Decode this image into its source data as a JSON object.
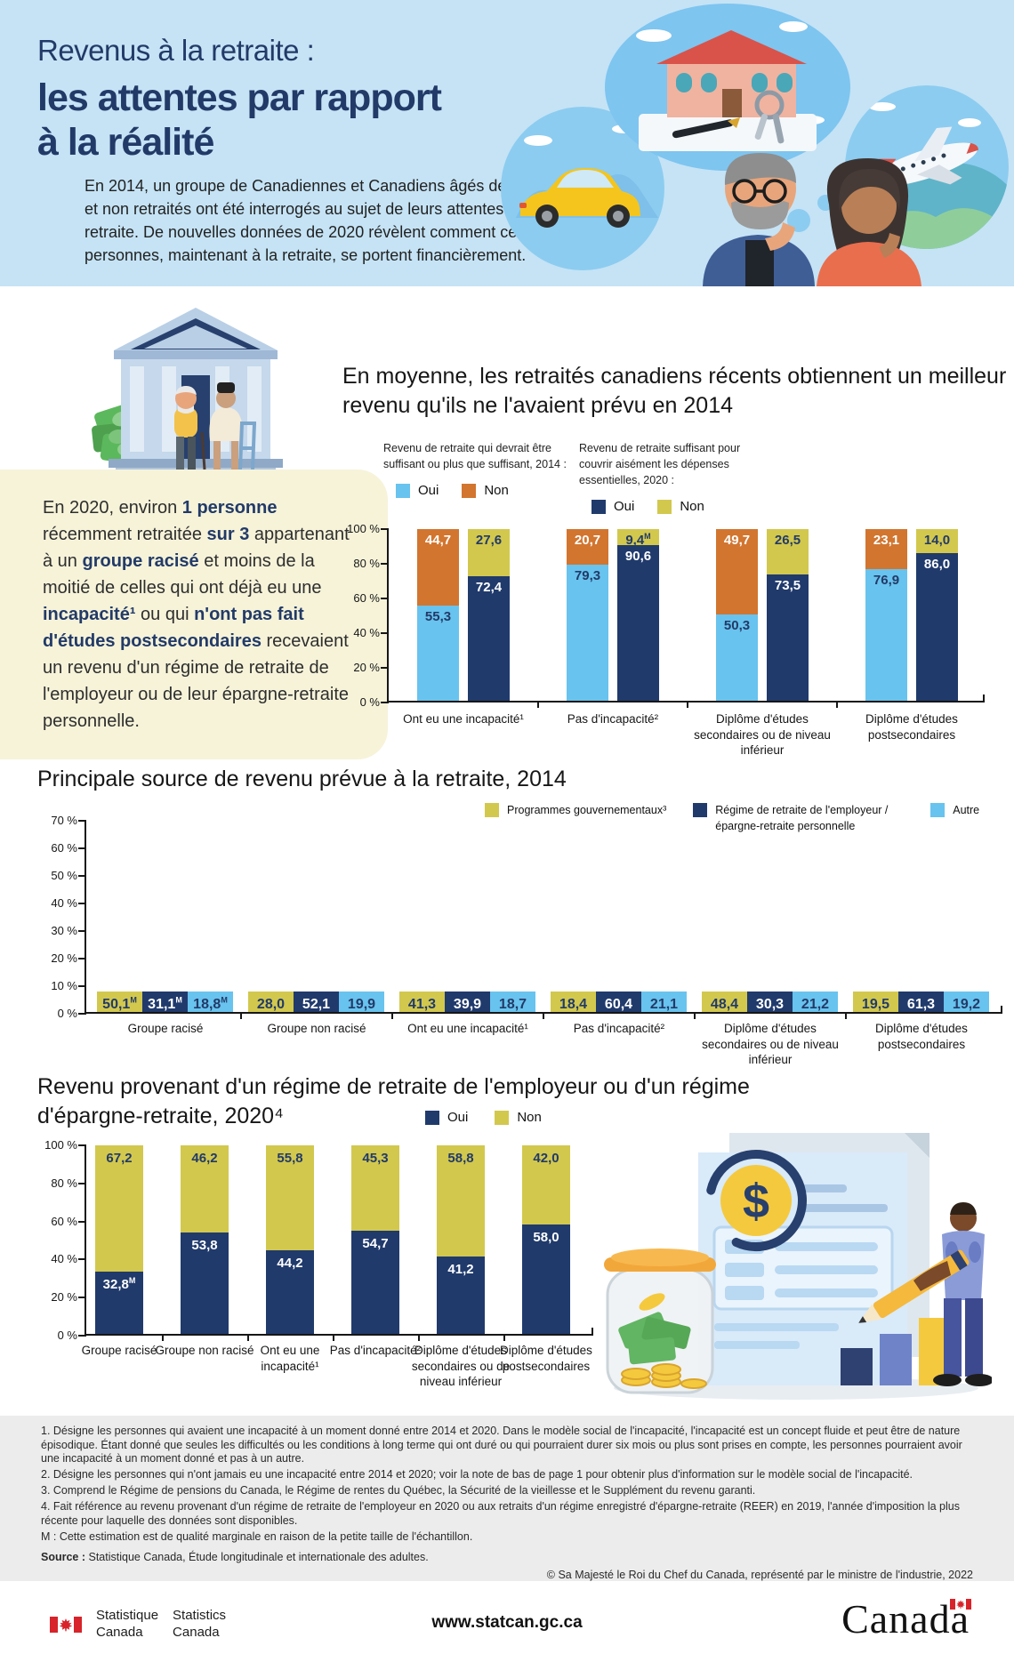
{
  "page_title": "Revenus à la retraite : les attentes par rapport à la réalité",
  "colors": {
    "header_bg": "#c5e3f5",
    "title_navy": "#223a68",
    "navy": "#203a6c",
    "light_blue": "#68c3ee",
    "orange": "#d2752f",
    "olive": "#d2c84e",
    "callout_bg": "#f6f3d9",
    "footnote_bg": "#ececec",
    "flag_red": "#d8232a",
    "navy_text": "#223a68"
  },
  "header": {
    "title_regular": "Revenus à la retraite :",
    "title_bold_line1": "les attentes par rapport",
    "title_bold_line2": "à la réalité",
    "intro": "En 2014, un groupe de Canadiennes et Canadiens âgés de 55 ans ou plus et non retraités ont été interrogés au sujet de leurs attentes financières à la retraite. De nouvelles données de 2020 révèlent comment ces mêmes personnes, maintenant à la retraite, se portent financièrement."
  },
  "callout": {
    "segments": [
      {
        "text": "En 2020, environ ",
        "bold": false
      },
      {
        "text": "1 personne",
        "bold": true
      },
      {
        "text": " récemment retraitée ",
        "bold": false
      },
      {
        "text": "sur 3",
        "bold": true
      },
      {
        "text": " appartenant à un ",
        "bold": false
      },
      {
        "text": "groupe racisé",
        "bold": true
      },
      {
        "text": " et moins de la moitié de celles qui ont déjà eu une ",
        "bold": false
      },
      {
        "text": "incapacité¹",
        "bold": true
      },
      {
        "text": " ou qui ",
        "bold": false
      },
      {
        "text": "n'ont pas fait d'études postsecondaires",
        "bold": true
      },
      {
        "text": " recevaient un revenu d'un régime de retraite de l'employeur ou de leur épargne-retraite personnelle.",
        "bold": false
      }
    ]
  },
  "chart_data": [
    {
      "id": "attentes-vs-realite",
      "type": "bar",
      "stacked": true,
      "units": "%",
      "ylim": [
        0,
        100
      ],
      "grid": false,
      "title": "En moyenne, les retraités canadiens récents obtiennent un meilleur revenu qu'ils ne l'avaient prévu en 2014",
      "yticks": [
        "100 %",
        "80 %",
        "60 %",
        "40 %",
        "20 %",
        "0 %"
      ],
      "legend_groups": [
        {
          "heading": "Revenu de retraite qui devrait être suffisant ou plus que suffisant, 2014 :",
          "items": [
            {
              "label": "Oui",
              "color_key": "light_blue"
            },
            {
              "label": "Non",
              "color_key": "orange"
            }
          ]
        },
        {
          "heading": "Revenu de retraite suffisant pour couvrir aisément les dépenses essentielles, 2020 :",
          "items": [
            {
              "label": "Oui",
              "color_key": "navy"
            },
            {
              "label": "Non",
              "color_key": "olive"
            }
          ]
        }
      ],
      "groups": [
        {
          "category": "Ont eu une incapacité¹",
          "bars": [
            {
              "name": "2014",
              "segments": [
                {
                  "name": "Oui",
                  "value": 55.3,
                  "label": "55,3",
                  "color_key": "light_blue",
                  "text": "navy"
                },
                {
                  "name": "Non",
                  "value": 44.7,
                  "label": "44,7",
                  "color_key": "orange",
                  "text": "white"
                }
              ]
            },
            {
              "name": "2020",
              "segments": [
                {
                  "name": "Oui",
                  "value": 72.4,
                  "label": "72,4",
                  "color_key": "navy",
                  "text": "white"
                },
                {
                  "name": "Non",
                  "value": 27.6,
                  "label": "27,6",
                  "color_key": "olive",
                  "text": "navy"
                }
              ]
            }
          ]
        },
        {
          "category": "Pas d'incapacité²",
          "bars": [
            {
              "name": "2014",
              "segments": [
                {
                  "name": "Oui",
                  "value": 79.3,
                  "label": "79,3",
                  "color_key": "light_blue",
                  "text": "navy"
                },
                {
                  "name": "Non",
                  "value": 20.7,
                  "label": "20,7",
                  "color_key": "orange",
                  "text": "white"
                }
              ]
            },
            {
              "name": "2020",
              "segments": [
                {
                  "name": "Oui",
                  "value": 90.6,
                  "label": "90,6",
                  "color_key": "navy",
                  "text": "white"
                },
                {
                  "name": "Non",
                  "value": 9.4,
                  "label": "9,4",
                  "sup": "M",
                  "color_key": "olive",
                  "text": "navy"
                }
              ]
            }
          ]
        },
        {
          "category": "Diplôme d'études secondaires ou de niveau inférieur",
          "bars": [
            {
              "name": "2014",
              "segments": [
                {
                  "name": "Oui",
                  "value": 50.3,
                  "label": "50,3",
                  "color_key": "light_blue",
                  "text": "navy"
                },
                {
                  "name": "Non",
                  "value": 49.7,
                  "label": "49,7",
                  "color_key": "orange",
                  "text": "white"
                }
              ]
            },
            {
              "name": "2020",
              "segments": [
                {
                  "name": "Oui",
                  "value": 73.5,
                  "label": "73,5",
                  "color_key": "navy",
                  "text": "white"
                },
                {
                  "name": "Non",
                  "value": 26.5,
                  "label": "26,5",
                  "color_key": "olive",
                  "text": "navy"
                }
              ]
            }
          ]
        },
        {
          "category": "Diplôme d'études postsecondaires",
          "bars": [
            {
              "name": "2014",
              "segments": [
                {
                  "name": "Oui",
                  "value": 76.9,
                  "label": "76,9",
                  "color_key": "light_blue",
                  "text": "navy"
                },
                {
                  "name": "Non",
                  "value": 23.1,
                  "label": "23,1",
                  "color_key": "orange",
                  "text": "white"
                }
              ]
            },
            {
              "name": "2020",
              "segments": [
                {
                  "name": "Oui",
                  "value": 86.0,
                  "label": "86,0",
                  "color_key": "navy",
                  "text": "white"
                },
                {
                  "name": "Non",
                  "value": 14.0,
                  "label": "14,0",
                  "color_key": "olive",
                  "text": "navy"
                }
              ]
            }
          ]
        }
      ]
    },
    {
      "id": "source-prevue-2014",
      "type": "bar",
      "grouped": true,
      "units": "%",
      "ymax": 70,
      "grid": false,
      "title": "Principale source de revenu prévue à la retraite, 2014",
      "yticks": [
        "70 %",
        "60 %",
        "50 %",
        "40 %",
        "30 %",
        "20 %",
        "10 %",
        "0 %"
      ],
      "legend": [
        {
          "label": "Programmes gouvernementaux³",
          "color_key": "olive"
        },
        {
          "label": "Régime de retraite de l'employeur / épargne-retraite personnelle",
          "color_key": "navy"
        },
        {
          "label": "Autre",
          "color_key": "light_blue"
        }
      ],
      "series_colors": [
        "olive",
        "navy",
        "light_blue"
      ],
      "groups": [
        {
          "category": "Groupe racisé",
          "values": [
            {
              "value": 50.1,
              "label": "50,1",
              "sup": "M"
            },
            {
              "value": 31.1,
              "label": "31,1",
              "sup": "M"
            },
            {
              "value": 18.8,
              "label": "18,8",
              "sup": "M"
            }
          ]
        },
        {
          "category": "Groupe non racisé",
          "values": [
            {
              "value": 28.0,
              "label": "28,0"
            },
            {
              "value": 52.1,
              "label": "52,1"
            },
            {
              "value": 19.9,
              "label": "19,9"
            }
          ]
        },
        {
          "category": "Ont eu une incapacité¹",
          "values": [
            {
              "value": 41.3,
              "label": "41,3"
            },
            {
              "value": 39.9,
              "label": "39,9"
            },
            {
              "value": 18.7,
              "label": "18,7"
            }
          ]
        },
        {
          "category": "Pas d'incapacité²",
          "values": [
            {
              "value": 18.4,
              "label": "18,4"
            },
            {
              "value": 60.4,
              "label": "60,4"
            },
            {
              "value": 21.1,
              "label": "21,1"
            }
          ]
        },
        {
          "category": "Diplôme d'études secondaires ou de niveau inférieur",
          "values": [
            {
              "value": 48.4,
              "label": "48,4"
            },
            {
              "value": 30.3,
              "label": "30,3"
            },
            {
              "value": 21.2,
              "label": "21,2"
            }
          ]
        },
        {
          "category": "Diplôme d'études postsecondaires",
          "values": [
            {
              "value": 19.5,
              "label": "19,5"
            },
            {
              "value": 61.3,
              "label": "61,3"
            },
            {
              "value": 19.2,
              "label": "19,2"
            }
          ]
        }
      ]
    },
    {
      "id": "revenu-regime-2020",
      "type": "bar",
      "stacked": true,
      "units": "%",
      "ylim": [
        0,
        100
      ],
      "grid": false,
      "title": "Revenu provenant d'un régime de retraite de l'employeur ou d'un régime d'épargne-retraite, 2020⁴",
      "yticks": [
        "100 %",
        "80 %",
        "60 %",
        "40 %",
        "20 %",
        "0 %"
      ],
      "legend": [
        {
          "label": "Oui",
          "color_key": "navy"
        },
        {
          "label": "Non",
          "color_key": "olive"
        }
      ],
      "groups": [
        {
          "category": "Groupe racisé",
          "oui": {
            "value": 32.8,
            "label": "32,8",
            "sup": "M"
          },
          "non": {
            "value": 67.2,
            "label": "67,2"
          }
        },
        {
          "category": "Groupe non racisé",
          "oui": {
            "value": 53.8,
            "label": "53,8"
          },
          "non": {
            "value": 46.2,
            "label": "46,2"
          }
        },
        {
          "category": "Ont eu une incapacité¹",
          "oui": {
            "value": 44.2,
            "label": "44,2"
          },
          "non": {
            "value": 55.8,
            "label": "55,8"
          }
        },
        {
          "category": "Pas d'incapacité²",
          "oui": {
            "value": 54.7,
            "label": "54,7"
          },
          "non": {
            "value": 45.3,
            "label": "45,3"
          }
        },
        {
          "category": "Diplôme d'études secondaires ou de niveau inférieur",
          "oui": {
            "value": 41.2,
            "label": "41,2"
          },
          "non": {
            "value": 58.8,
            "label": "58,8"
          }
        },
        {
          "category": "Diplôme d'études postsecondaires",
          "oui": {
            "value": 58.0,
            "label": "58,0"
          },
          "non": {
            "value": 42.0,
            "label": "42,0"
          }
        }
      ]
    }
  ],
  "footnotes": [
    "1. Désigne les personnes qui avaient une incapacité à un moment donné entre 2014 et 2020. Dans le modèle social de l'incapacité, l'incapacité est un concept fluide et peut être de nature épisodique. Étant donné que seules les difficultés ou les conditions à long terme qui ont duré ou qui pourraient durer six mois ou plus sont prises en compte, les personnes pourraient avoir une incapacité à un moment donné et pas à un autre.",
    "2. Désigne les personnes qui n'ont jamais eu une incapacité entre 2014 et 2020; voir la note de bas de page 1 pour obtenir plus d'information sur le modèle social de l'incapacité.",
    "3. Comprend le Régime de pensions du Canada, le Régime de rentes du Québec, la Sécurité de la vieillesse et le Supplément du revenu garanti.",
    "4. Fait référence au revenu provenant d'un régime de retraite de l'employeur en 2020 ou aux retraits d'un régime enregistré d'épargne-retraite (REER) en 2019, l'année d'imposition la plus récente pour laquelle des données sont disponibles.",
    "M : Cette estimation est de qualité marginale en raison de la petite taille de l'échantillon."
  ],
  "source": {
    "label": "Source :",
    "text": " Statistique Canada, Étude longitudinale et internationale des adultes."
  },
  "copyright": "© Sa Majesté le Roi du Chef du Canada, représenté par le ministre de l'industrie, 2022",
  "footer": {
    "agency_fr": [
      "Statistique",
      "Canada"
    ],
    "agency_en": [
      "Statistics",
      "Canada"
    ],
    "url": "www.statcan.gc.ca",
    "wordmark": "Canada"
  }
}
